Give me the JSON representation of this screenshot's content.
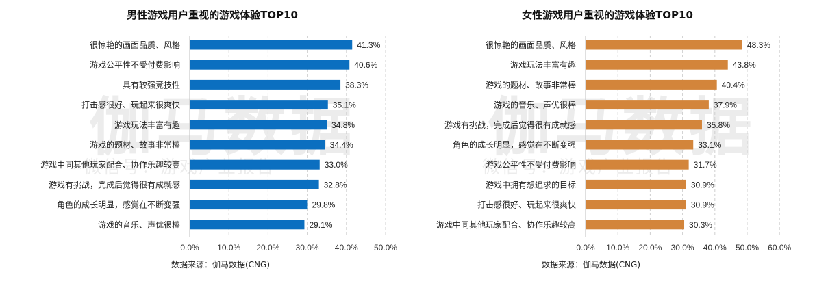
{
  "watermark": {
    "main": "伽马数据",
    "sub": "微信号：游戏产业报告"
  },
  "chart_data": [
    {
      "type": "bar",
      "orientation": "horizontal",
      "title": "男性游戏用户重视的游戏体验TOP10",
      "source": "数据来源：伽马数据(CNG)",
      "categories": [
        "很惊艳的画面品质、风格",
        "游戏公平性不受付费影响",
        "具有较强竞技性",
        "打击感很好、玩起来很爽快",
        "游戏玩法丰富有趣",
        "游戏的题材、故事非常棒",
        "游戏中同其他玩家配合、协作乐趣较高",
        "游戏有挑战，完成后觉得很有成就感",
        "角色的成长明显，感觉在不断变强",
        "游戏的音乐、声优很棒"
      ],
      "values": [
        41.3,
        40.6,
        38.3,
        35.1,
        34.8,
        34.4,
        33.0,
        32.8,
        29.8,
        29.1
      ],
      "value_labels": [
        "41.3%",
        "40.6%",
        "38.3%",
        "35.1%",
        "34.8%",
        "34.4%",
        "33.0%",
        "32.8%",
        "29.8%",
        "29.1%"
      ],
      "xlim": [
        0,
        50
      ],
      "xticks": [
        "0.0%",
        "10.0%",
        "20.0%",
        "30.0%",
        "40.0%",
        "50.0%"
      ],
      "color": "#0b6fc0",
      "grid": "vertical-dashed"
    },
    {
      "type": "bar",
      "orientation": "horizontal",
      "title": "女性游戏用户重视的游戏体验TOP10",
      "source": "数据来源：伽马数据(CNG)",
      "categories": [
        "很惊艳的画面品质、风格",
        "游戏玩法丰富有趣",
        "游戏的题材、故事非常棒",
        "游戏的音乐、声优很棒",
        "游戏有挑战，完成后觉得很有成就感",
        "角色的成长明显，感觉在不断变强",
        "游戏公平性不受付费影响",
        "游戏中拥有想追求的目标",
        "打击感很好、玩起来很爽快",
        "游戏中同其他玩家配合、协作乐趣较高"
      ],
      "values": [
        48.3,
        43.8,
        40.4,
        37.9,
        35.8,
        33.1,
        31.7,
        30.9,
        30.9,
        30.3
      ],
      "value_labels": [
        "48.3%",
        "43.8%",
        "40.4%",
        "37.9%",
        "35.8%",
        "33.1%",
        "31.7%",
        "30.9%",
        "30.9%",
        "30.3%"
      ],
      "xlim": [
        0,
        60
      ],
      "xticks": [
        "0.0%",
        "10.0%",
        "20.0%",
        "30.0%",
        "40.0%",
        "50.0%",
        "60.0%"
      ],
      "color": "#d3853b",
      "grid": "vertical-dashed"
    }
  ]
}
